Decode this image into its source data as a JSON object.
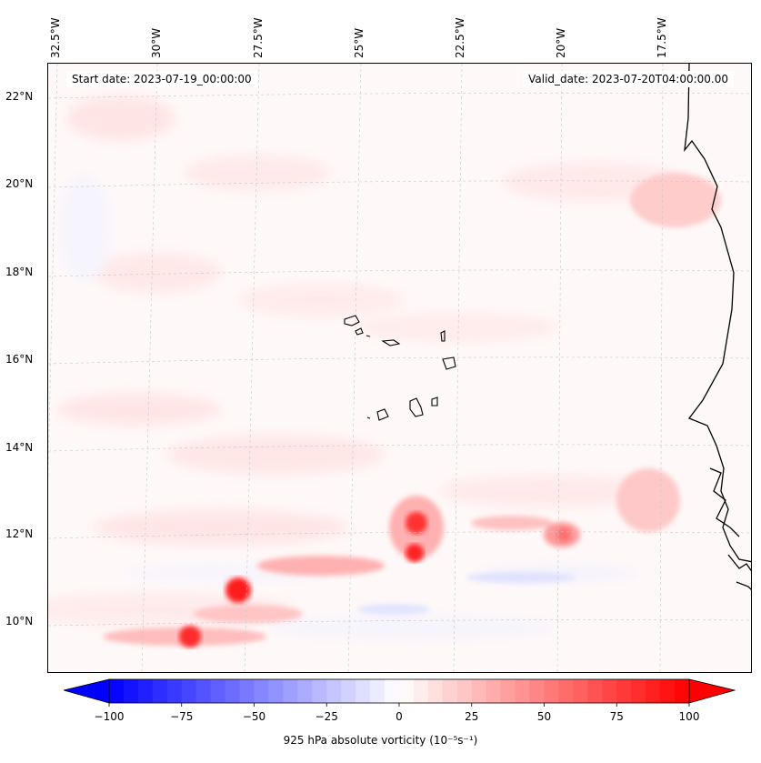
{
  "map": {
    "start_date": "Start date: 2023-07-19_00:00:00",
    "valid_date": "Valid_date: 2023-07-20T04:00:00.00",
    "lon_labels": [
      "32.5°W",
      "30°W",
      "27.5°W",
      "25°W",
      "22.5°W",
      "20°W",
      "17.5°W"
    ],
    "lat_labels": [
      "22°N",
      "20°N",
      "18°N",
      "16°N",
      "14°N",
      "12°N",
      "10°N"
    ]
  },
  "colorbar": {
    "label": "925 hPa absolute vorticity (10⁻⁵s⁻¹)",
    "ticks": [
      "−100",
      "−75",
      "−50",
      "−25",
      "0",
      "25",
      "50",
      "75",
      "100"
    ],
    "min": -100,
    "max": 100,
    "levels": 40,
    "low_color": "#0000ff",
    "high_color": "#ff0000"
  },
  "colors": {
    "background_field": "#fff8f8",
    "coastline": "#000000",
    "gridline": "#bbbbbb"
  }
}
